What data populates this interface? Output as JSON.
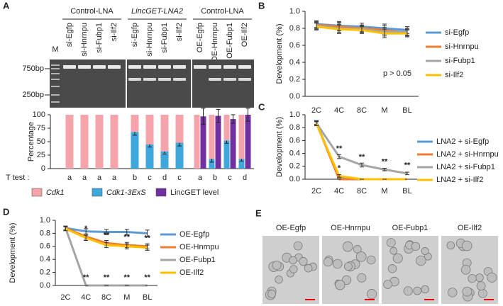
{
  "panel_labels": [
    "A",
    "B",
    "C",
    "D",
    "E"
  ],
  "gel": {
    "marker": "M",
    "groups": [
      "Control-LNA",
      "LincGET-LNA2",
      "Control-LNA"
    ],
    "sizes": [
      "750bp",
      "250bp"
    ]
  },
  "chart_data": [
    {
      "type": "bar",
      "ylabel": "Percentage",
      "categories": [
        "si-Egfp",
        "si-Hnrnpu",
        "si-Fubp1",
        "si-Ilf2",
        "si-Egfp",
        "si-Hnrnpu",
        "si-Fubp1",
        "si-Ilf2",
        "OE-Egfp",
        "OE-Hnrnpu",
        "OE-Fubp1",
        "OE-Ilf2"
      ],
      "ylim": [
        0,
        100
      ],
      "yticks": [
        0,
        25,
        50,
        75,
        100
      ],
      "series": [
        {
          "name": "Cdk1-3ExS",
          "color": "#3ea7dc",
          "stack": "a",
          "values": [
            0,
            0,
            0,
            0,
            68,
            45,
            32,
            48,
            0,
            18,
            52,
            18
          ],
          "errors": [
            null,
            null,
            null,
            null,
            6,
            5,
            5,
            6,
            null,
            6,
            5,
            4
          ]
        },
        {
          "name": "Cdk1",
          "color": "#f4a4aa",
          "stack": "a",
          "values": [
            100,
            100,
            100,
            100,
            32,
            55,
            68,
            52,
            100,
            82,
            48,
            82
          ]
        },
        {
          "name": "LincGET level",
          "color": "#7030a0",
          "stack": "b",
          "values": [
            null,
            null,
            null,
            null,
            null,
            null,
            null,
            null,
            97,
            98,
            92,
            100
          ],
          "errors": [
            null,
            null,
            null,
            null,
            null,
            null,
            null,
            null,
            15,
            12,
            8,
            12
          ]
        }
      ],
      "t_test_label": "T test :",
      "t_test": [
        "a",
        "a",
        "a",
        "a",
        "b",
        "c",
        "d",
        "c",
        "a",
        "b",
        "c",
        "d"
      ]
    },
    {
      "type": "line",
      "ylabel": "Development (%)",
      "categories": [
        "2C",
        "4C",
        "8C",
        "M",
        "BL"
      ],
      "ylim": [
        0,
        1
      ],
      "yticks": [
        {
          "value": 0,
          "label": "0.0"
        },
        {
          "value": 0.2,
          "label": "0.2"
        },
        {
          "value": 0.4,
          "label": "0.4"
        },
        {
          "value": 0.6,
          "label": "0.6"
        },
        {
          "value": 0.8,
          "label": "0.8"
        },
        {
          "value": 1,
          "label": "1.0"
        }
      ],
      "annotation": "p > 0.05",
      "series": [
        {
          "name": "si-Egfp",
          "color": "#5b9bd5",
          "values": [
            0.85,
            0.83,
            0.82,
            0.8,
            0.78
          ],
          "errors": [
            0.04,
            0.05,
            0.04,
            0.05,
            0.04
          ]
        },
        {
          "name": "si-Hnrnpu",
          "color": "#ed7d31",
          "values": [
            0.84,
            0.82,
            0.8,
            0.78,
            0.75
          ],
          "errors": [
            0.04,
            0.05,
            0.04,
            0.05,
            0.04
          ]
        },
        {
          "name": "si-Fubp1",
          "color": "#a5a5a5",
          "values": [
            0.83,
            0.8,
            0.79,
            0.76,
            0.76
          ],
          "errors": [
            0.04,
            0.05,
            0.04,
            0.05,
            0.04
          ]
        },
        {
          "name": "si-Ilf2",
          "color": "#ffc000",
          "values": [
            0.82,
            0.79,
            0.78,
            0.74,
            0.74
          ],
          "errors": [
            0.04,
            0.05,
            0.04,
            0.05,
            0.04
          ]
        }
      ]
    },
    {
      "type": "line",
      "ylabel": "Development (%)",
      "categories": [
        "2C",
        "4C",
        "8C",
        "M",
        "BL"
      ],
      "ylim": [
        0,
        1
      ],
      "yticks": [
        {
          "value": 0,
          "label": "0.0"
        },
        {
          "value": 0.2,
          "label": "0.2"
        },
        {
          "value": 0.4,
          "label": "0.4"
        },
        {
          "value": 0.6,
          "label": "0.6"
        },
        {
          "value": 0.8,
          "label": "0.8"
        },
        {
          "value": 1,
          "label": "1.0"
        }
      ],
      "series": [
        {
          "name": "LNA2 + si-Egfp",
          "color": "#5b9bd5",
          "values": [
            0.88,
            0.02,
            0,
            0,
            0
          ],
          "errors": [
            0.03,
            0.01,
            0,
            0,
            0
          ]
        },
        {
          "name": "LNA2 + si-Hnrnpu",
          "color": "#ed7d31",
          "values": [
            0.87,
            0,
            0,
            0,
            0
          ],
          "errors": [
            0.03,
            0,
            0,
            0,
            0
          ]
        },
        {
          "name": "LNA2 + si-Fubp1",
          "color": "#a5a5a5",
          "values": [
            0.87,
            0.35,
            0.22,
            0.15,
            0.09
          ],
          "errors": [
            0.03,
            0.03,
            0.03,
            0.02,
            0.02
          ],
          "significance": [
            null,
            "**",
            "**",
            "**",
            "**"
          ]
        },
        {
          "name": "LNA2 + si-Ilf2",
          "color": "#ffc000",
          "values": [
            0.86,
            0.05,
            0,
            0,
            0
          ],
          "errors": [
            0.03,
            0.02,
            0,
            0,
            0
          ],
          "significance": [
            null,
            "*",
            null,
            null,
            null
          ]
        }
      ]
    },
    {
      "type": "line",
      "ylabel": "Development (%)",
      "categories": [
        "2C",
        "4C",
        "8C",
        "M",
        "BL"
      ],
      "ylim": [
        0,
        1
      ],
      "yticks": [
        {
          "value": 0,
          "label": "0.0"
        },
        {
          "value": 0.2,
          "label": "0.2"
        },
        {
          "value": 0.4,
          "label": "0.4"
        },
        {
          "value": 0.6,
          "label": "0.6"
        },
        {
          "value": 0.8,
          "label": "0.8"
        },
        {
          "value": 1,
          "label": "1.0"
        }
      ],
      "series": [
        {
          "name": "OE-Egfp",
          "color": "#5b9bd5",
          "values": [
            0.88,
            0.83,
            0.82,
            0.82,
            0.8
          ],
          "errors": [
            0.03,
            0.04,
            0.04,
            0.04,
            0.05
          ]
        },
        {
          "name": "OE-Hnrnpu",
          "color": "#ed7d31",
          "values": [
            0.88,
            0.75,
            0.65,
            0.62,
            0.6
          ],
          "errors": [
            0.03,
            0.04,
            0.04,
            0.04,
            0.04
          ],
          "significance": [
            null,
            "*",
            "**",
            "**",
            "**"
          ]
        },
        {
          "name": "OE-Fubp1",
          "color": "#a5a5a5",
          "values": [
            0.88,
            0,
            0,
            0,
            0
          ],
          "errors": [
            0.03,
            0,
            0,
            0,
            0
          ],
          "significance": [
            null,
            "**",
            "**",
            "**",
            "**"
          ]
        },
        {
          "name": "OE-Ilf2",
          "color": "#ffc000",
          "values": [
            0.87,
            0.73,
            0.62,
            0.6,
            0.58
          ],
          "errors": [
            0.03,
            0.04,
            0.04,
            0.04,
            0.04
          ]
        }
      ]
    }
  ],
  "micrographs": {
    "labels": [
      "OE-Egfp",
      "OE-Hnrnpu",
      "OE-Fubp1",
      "OE-Ilf2"
    ]
  }
}
